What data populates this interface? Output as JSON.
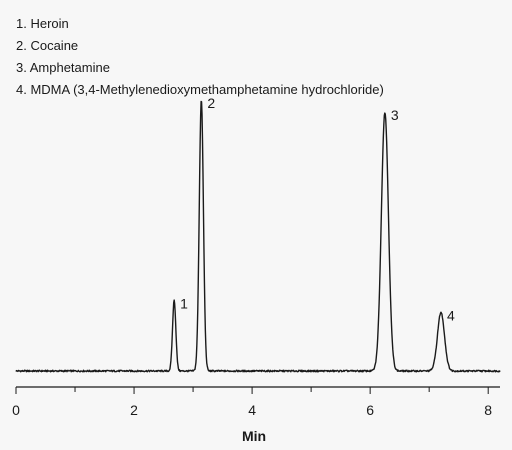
{
  "chart_data": {
    "type": "line",
    "title": "",
    "xlabel": "Min",
    "ylabel": "",
    "xlim": [
      0,
      8.2
    ],
    "ylim": [
      0,
      100
    ],
    "x_ticks": [
      0,
      2,
      4,
      6,
      8
    ],
    "x_tick_labels": [
      "0",
      "2",
      "4",
      "6",
      "8"
    ],
    "x_minor_step": 1,
    "grid": false,
    "legend": {
      "placement": "top-left",
      "entries": [
        "1. Heroin",
        "2. Cocaine",
        "3. Amphetamine",
        "4. MDMA (3,4-Methylenedioxymethamphetamine hydrochloride)"
      ]
    },
    "baseline": 0,
    "peaks": [
      {
        "label": "1",
        "x": 2.68,
        "height": 26.1,
        "width": 0.028
      },
      {
        "label": "2",
        "x": 3.14,
        "height": 100.0,
        "width": 0.035
      },
      {
        "label": "3",
        "x": 6.25,
        "height": 95.5,
        "width": 0.06
      },
      {
        "label": "4",
        "x": 7.2,
        "height": 21.6,
        "width": 0.06
      }
    ],
    "series": [
      {
        "color": "#1a1a1a"
      }
    ]
  }
}
